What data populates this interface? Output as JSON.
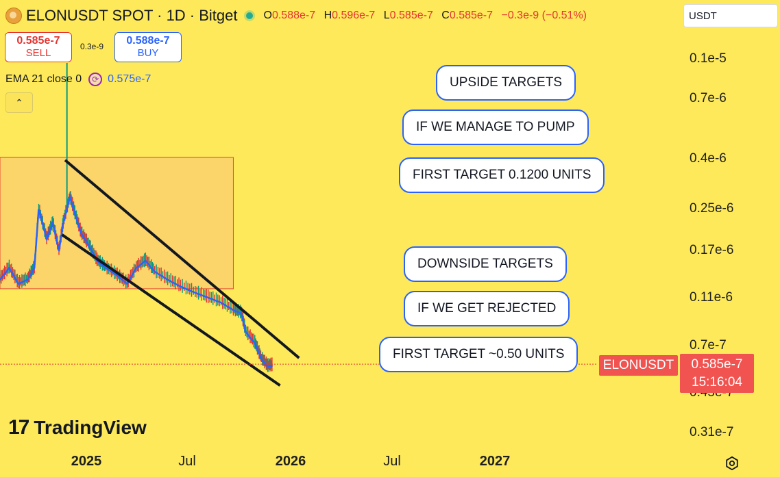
{
  "header": {
    "title": "ELONUSDT SPOT · 1D · Bitget",
    "ohlc": [
      {
        "k": "O",
        "v": "0.588e-7"
      },
      {
        "k": "H",
        "v": "0.596e-7"
      },
      {
        "k": "L",
        "v": "0.585e-7"
      },
      {
        "k": "C",
        "v": "0.585e-7"
      }
    ],
    "change": "−0.3e-9 (−0.51%)"
  },
  "trade": {
    "sell_price": "0.585e-7",
    "sell_label": "SELL",
    "spread": "0.3e-9",
    "buy_price": "0.588e-7",
    "buy_label": "BUY"
  },
  "indicator": {
    "label": "EMA 21 close 0",
    "value": "0.575e-7",
    "collapse_icon": "chevron-up-icon"
  },
  "currency_select": "USDT",
  "symbol_tag": "ELONUSDT",
  "price_tag": {
    "price": "0.585e-7",
    "countdown": "15:16:04"
  },
  "brand": {
    "mark": "17",
    "name": "TradingView"
  },
  "colors": {
    "background": "#fde95a",
    "zone": "#fbd36b",
    "zone_border": "#e5332f",
    "ema": "#2962ff",
    "down": "#e5332f",
    "up": "#089981",
    "bubble_border": "#2962ff",
    "tag": "#f05350"
  },
  "annotations": [
    "UPSIDE TARGETS",
    "IF WE MANAGE TO PUMP",
    "FIRST TARGET 0.1200 UNITS",
    "DOWNSIDE TARGETS",
    "IF WE GET REJECTED",
    "FIRST TARGET ~0.50 UNITS"
  ],
  "chart_data": {
    "type": "line",
    "scale": "log",
    "y_ticks": [
      "0.1e-5",
      "0.7e-6",
      "0.4e-6",
      "0.25e-6",
      "0.17e-6",
      "0.11e-6",
      "0.7e-7",
      "0.45e-7",
      "0.31e-7"
    ],
    "x_ticks": [
      "2025",
      "Jul",
      "2026",
      "Jul",
      "2027"
    ],
    "x_ticks_bold": [
      true,
      false,
      true,
      false,
      true
    ],
    "x_range": [
      "2024-09-10",
      "2027-09-20"
    ],
    "series": [
      {
        "kind": "price",
        "points": [
          [
            "2024-09-10",
            1.3e-07
          ],
          [
            "2024-09-25",
            1.45e-07
          ],
          [
            "2024-10-10",
            1.25e-07
          ],
          [
            "2024-10-25",
            1.3e-07
          ],
          [
            "2024-11-05",
            1.45e-07
          ],
          [
            "2024-11-12",
            2.5e-07
          ],
          [
            "2024-11-25",
            1.9e-07
          ],
          [
            "2024-12-05",
            2.2e-07
          ],
          [
            "2024-12-15",
            1.7e-07
          ],
          [
            "2024-12-22",
            2.2e-07
          ],
          [
            "2025-01-02",
            2.8e-07
          ],
          [
            "2025-01-10",
            2.4e-07
          ],
          [
            "2025-01-20",
            2e-07
          ],
          [
            "2025-02-01",
            1.8e-07
          ],
          [
            "2025-02-15",
            1.55e-07
          ],
          [
            "2025-03-01",
            1.45e-07
          ],
          [
            "2025-03-20",
            1.35e-07
          ],
          [
            "2025-04-05",
            1.25e-07
          ],
          [
            "2025-04-20",
            1.45e-07
          ],
          [
            "2025-05-05",
            1.55e-07
          ],
          [
            "2025-05-20",
            1.4e-07
          ],
          [
            "2025-06-10",
            1.3e-07
          ],
          [
            "2025-07-01",
            1.22e-07
          ],
          [
            "2025-07-25",
            1.15e-07
          ],
          [
            "2025-08-15",
            1.1e-07
          ],
          [
            "2025-09-05",
            1.05e-07
          ],
          [
            "2025-09-25",
            9.8e-08
          ],
          [
            "2025-10-08",
            9.5e-08
          ],
          [
            "2025-10-15",
            8e-08
          ],
          [
            "2025-10-30",
            7.2e-08
          ],
          [
            "2025-11-10",
            6.2e-08
          ],
          [
            "2025-11-20",
            5.8e-08
          ],
          [
            "2025-11-28",
            5.85e-08
          ]
        ]
      }
    ],
    "annotations": {
      "demand_zone": {
        "from": "2024-09-10",
        "to": "2025-09-25",
        "y_low": 1.18e-07,
        "y_high": 4e-07
      },
      "wedge_upper": [
        [
          "2024-12-25",
          3.9e-07
        ],
        [
          "2026-01-10",
          6.2e-08
        ]
      ],
      "wedge_lower": [
        [
          "2024-12-20",
          1.95e-07
        ],
        [
          "2025-12-10",
          4.8e-08
        ]
      ],
      "current_price": 5.85e-08
    }
  }
}
